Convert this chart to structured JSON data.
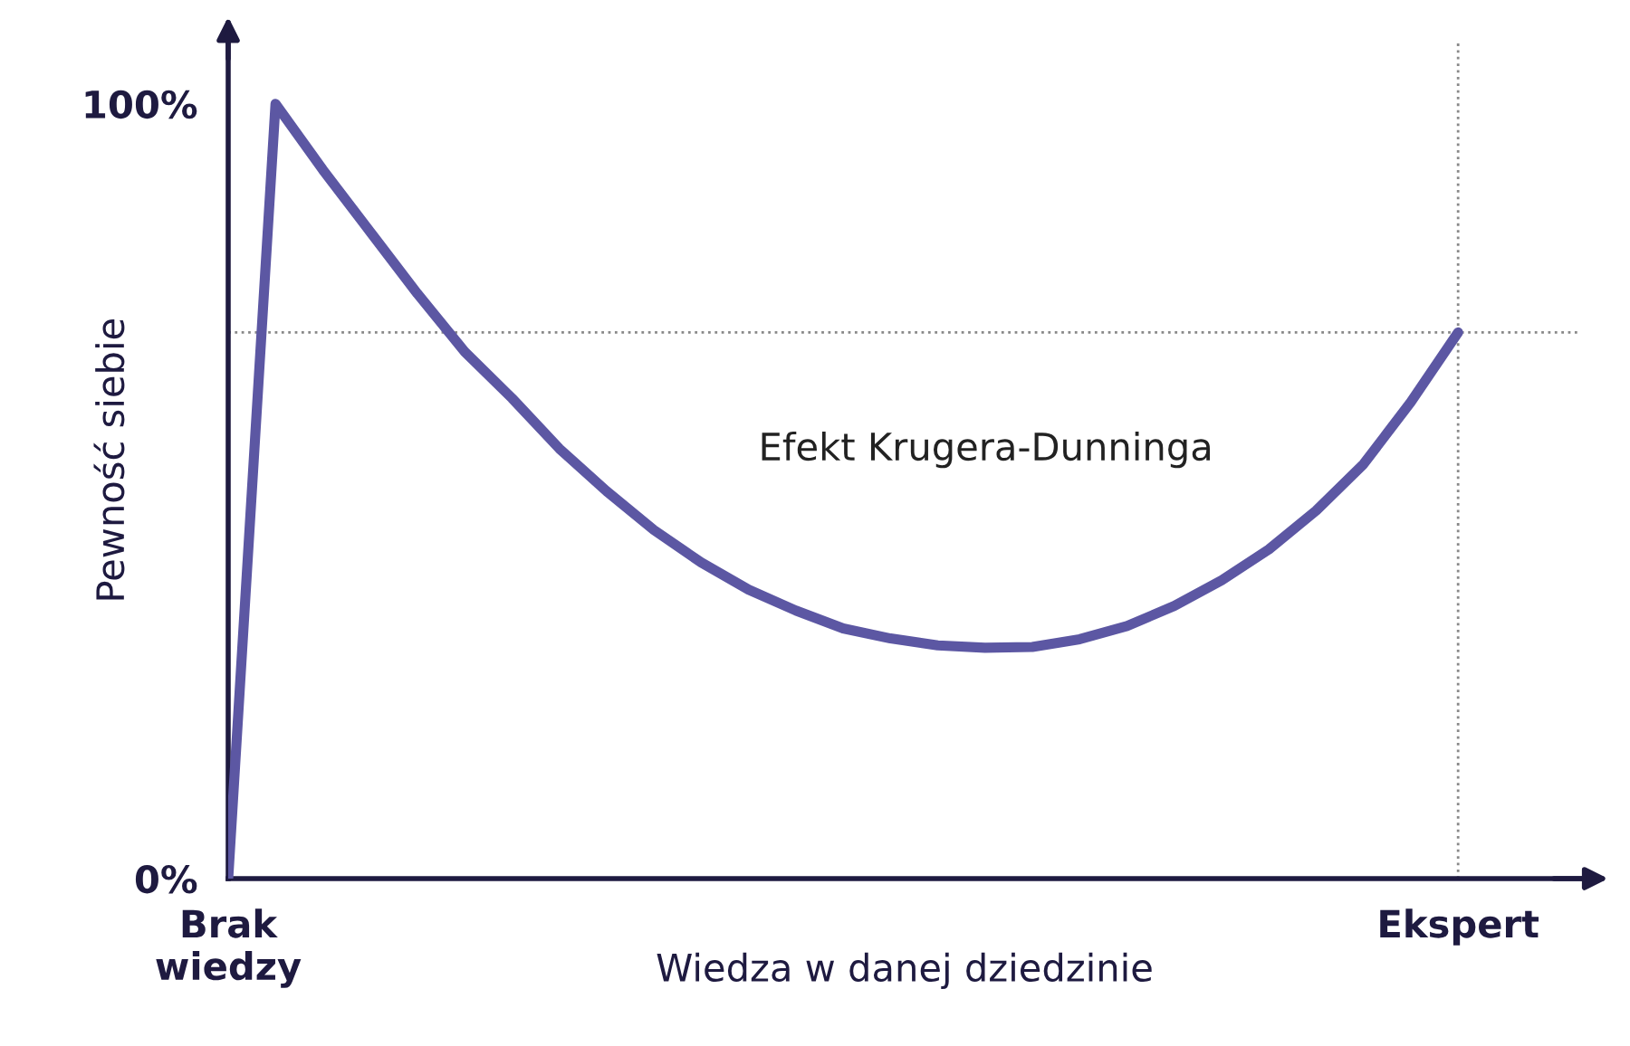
{
  "chart_data": {
    "type": "line",
    "xlabel": "Wiedza w danej dziedzinie",
    "ylabel": "Pewność siebie",
    "categories": [
      "Brak\nwiedzy",
      null,
      null,
      null,
      null,
      null,
      null,
      null,
      null,
      null,
      null,
      null,
      null,
      null,
      null,
      null,
      null,
      null,
      null,
      null,
      null,
      null,
      null,
      null,
      null,
      null,
      "Ekspert"
    ],
    "series": [
      {
        "color": "#5c57a3",
        "values": [
          0,
          100,
          91.5,
          83.5,
          75.5,
          68,
          62,
          55.5,
          50,
          45,
          40.8,
          37.3,
          34.6,
          32.3,
          31,
          30.1,
          29.8,
          29.9,
          30.9,
          32.6,
          35.2,
          38.5,
          42.5,
          47.5,
          53.5,
          61.5,
          70.5
        ]
      }
    ],
    "ylim": [
      0,
      108
    ],
    "yticks": [
      {
        "value": 0,
        "label": "0%"
      },
      {
        "value": 100,
        "label": "100%"
      }
    ],
    "ref_lines": [
      {
        "axis": "y",
        "value": 70.5,
        "color": "#888888",
        "line_style": "dotted"
      },
      {
        "axis": "x",
        "value": "Ekspert",
        "color": "#888888",
        "line_style": "dotted"
      }
    ],
    "annotations": [
      "Efekt Krugera-Dunninga"
    ],
    "grid": false,
    "legend": false,
    "marker": "none",
    "line_style": "solid"
  }
}
